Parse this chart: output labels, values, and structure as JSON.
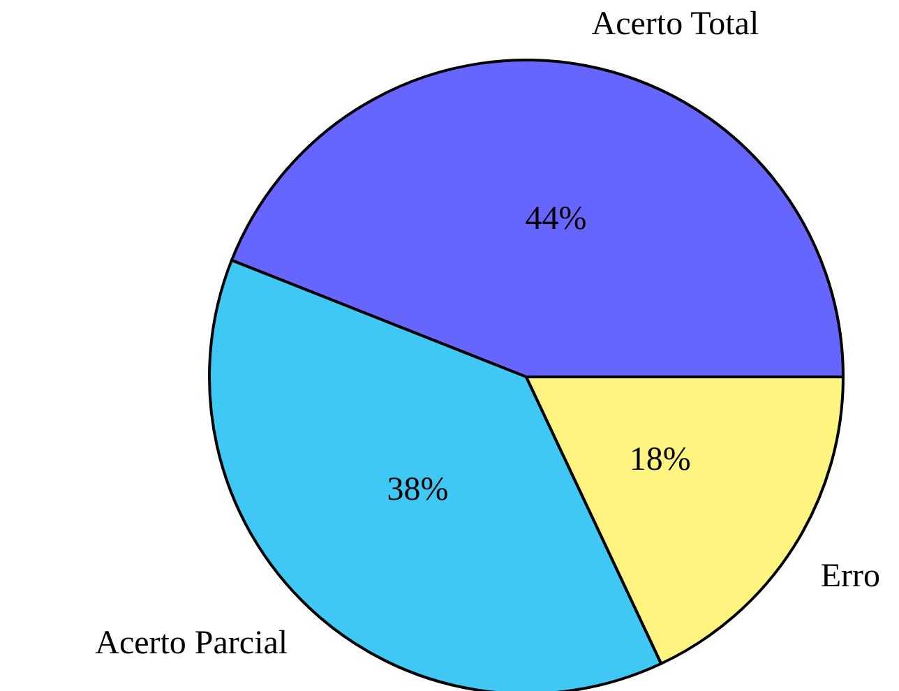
{
  "chart_data": {
    "type": "pie",
    "categories": [
      "Acerto Total",
      "Acerto Parcial",
      "Erro"
    ],
    "values": [
      44,
      38,
      18
    ],
    "colors": [
      "#6666ff",
      "#40c8f4",
      "#fff480"
    ],
    "value_labels": [
      "44%",
      "38%",
      "18%"
    ]
  }
}
